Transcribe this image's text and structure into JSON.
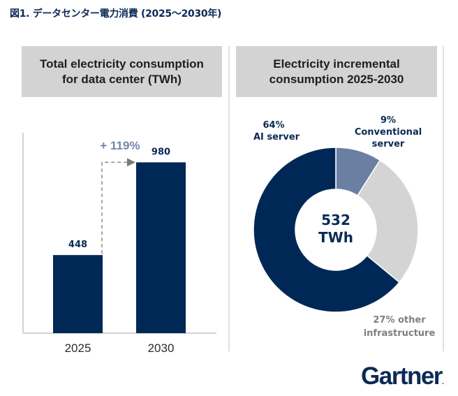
{
  "figure_title": "図1. データセンター電力消費 (2025～2030年)",
  "logo": {
    "text": "Gartner",
    "mark": "."
  },
  "colors": {
    "navy": "#002856",
    "slate": "#6b7fa3",
    "light_gray": "#d4d4d4",
    "growth_text": "#7186ad",
    "other_text": "#7f7f7f"
  },
  "chart_data": [
    {
      "type": "bar",
      "title": "Total electricity consumption for data center (TWh)",
      "title_lines": [
        "Total electricity consumption",
        "for data center (TWh)"
      ],
      "categories": [
        "2025",
        "2030"
      ],
      "values": [
        448,
        980
      ],
      "value_labels": [
        "448",
        "980"
      ],
      "ylim": [
        0,
        1150
      ],
      "xlabel": "",
      "ylabel": "",
      "annotation": "+ 119%"
    },
    {
      "type": "pie",
      "donut": true,
      "title": "Electricity incremental consumption 2025-2030",
      "title_lines": [
        "Electricity incremental",
        "consumption 2025-2030"
      ],
      "center_label": [
        "532",
        "TWh"
      ],
      "slices": [
        {
          "name": "Conventional server",
          "value": 9,
          "label_lines": [
            "9%",
            "Conventional",
            "server"
          ]
        },
        {
          "name": "other infrastructure",
          "value": 27,
          "label_lines": [
            "27% other",
            "infrastructure"
          ]
        },
        {
          "name": "AI server",
          "value": 64,
          "label_lines": [
            "64%",
            "AI server"
          ]
        }
      ]
    }
  ]
}
